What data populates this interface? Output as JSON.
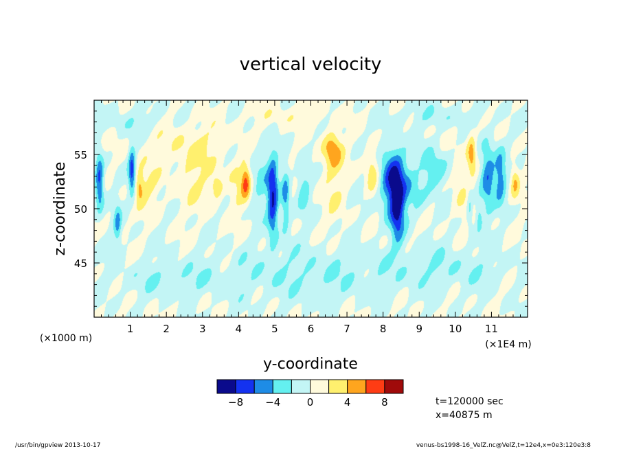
{
  "chart_data": {
    "type": "heatmap",
    "title": "vertical velocity",
    "xlabel": "y-coordinate",
    "ylabel": "z-coordinate",
    "x_unit_left": "(×1000 m)",
    "x_unit_right": "(×1E4 m)",
    "xlim": [
      0,
      12
    ],
    "ylim": [
      40,
      60
    ],
    "x_ticks": [
      "1",
      "2",
      "3",
      "4",
      "5",
      "6",
      "7",
      "8",
      "9",
      "10",
      "11"
    ],
    "y_ticks": [
      "45",
      "50",
      "55"
    ],
    "colorbar": {
      "levels": [
        -10,
        -8,
        -6,
        -4,
        -2,
        0,
        2,
        4,
        6,
        8,
        10
      ],
      "tick_labels": [
        "−8",
        "−4",
        "0",
        "4",
        "8"
      ],
      "colors": [
        "#0a0a8c",
        "#1432f0",
        "#1e8ce6",
        "#64f0f0",
        "#c3f5f5",
        "#fffadc",
        "#fff06e",
        "#ffa51e",
        "#ff3c14",
        "#a00a0a"
      ]
    },
    "annotations": {
      "time": "t=120000 sec",
      "xpos": "x=40875 m"
    },
    "footer_left": "/usr/bin/gpview  2013-10-17",
    "footer_right": "venus-bs1998-16_VelZ.nc@VelZ,t=12e4,x=0e3:120e3:8",
    "features": [
      {
        "x": 0.15,
        "z": 52.5,
        "a": -7,
        "sx": 0.12,
        "sz": 2.5
      },
      {
        "x": 1.05,
        "z": 53.5,
        "a": -7,
        "sx": 0.1,
        "sz": 2.2
      },
      {
        "x": 0.65,
        "z": 48.5,
        "a": -4,
        "sx": 0.1,
        "sz": 2.0
      },
      {
        "x": 1.25,
        "z": 52.0,
        "a": 4,
        "sx": 0.12,
        "sz": 1.3
      },
      {
        "x": 1.5,
        "z": 52.0,
        "a": 2,
        "sx": 0.35,
        "sz": 2.2
      },
      {
        "x": 2.8,
        "z": 53.0,
        "a": 2,
        "sx": 0.6,
        "sz": 3.0
      },
      {
        "x": 3.4,
        "z": 52.0,
        "a": 4,
        "sx": 0.15,
        "sz": 1.0
      },
      {
        "x": 4.0,
        "z": 52.0,
        "a": 2,
        "sx": 0.3,
        "sz": 2.5
      },
      {
        "x": 4.2,
        "z": 52.5,
        "a": 5,
        "sx": 0.12,
        "sz": 1.6
      },
      {
        "x": 4.6,
        "z": 53.0,
        "a": -2.5,
        "sx": 0.25,
        "sz": 3.0
      },
      {
        "x": 4.95,
        "z": 51.0,
        "a": -8,
        "sx": 0.15,
        "sz": 3.8
      },
      {
        "x": 5.3,
        "z": 51.0,
        "a": -5,
        "sx": 0.12,
        "sz": 3.0
      },
      {
        "x": 5.8,
        "z": 52.0,
        "a": -3,
        "sx": 0.18,
        "sz": 2.5
      },
      {
        "x": 6.6,
        "z": 55.5,
        "a": 5,
        "sx": 0.25,
        "sz": 1.5
      },
      {
        "x": 6.6,
        "z": 52.5,
        "a": 2,
        "sx": 0.35,
        "sz": 3.5
      },
      {
        "x": 7.7,
        "z": 53.5,
        "a": 4,
        "sx": 0.18,
        "sz": 2.0
      },
      {
        "x": 8.3,
        "z": 52.5,
        "a": -9,
        "sx": 0.35,
        "sz": 3.0
      },
      {
        "x": 8.4,
        "z": 49.5,
        "a": -6,
        "sx": 0.18,
        "sz": 2.8
      },
      {
        "x": 9.4,
        "z": 53.5,
        "a": -4,
        "sx": 0.35,
        "sz": 2.0
      },
      {
        "x": 8.9,
        "z": 51.0,
        "a": -2,
        "sx": 0.3,
        "sz": 2.0
      },
      {
        "x": 10.45,
        "z": 55.0,
        "a": 5,
        "sx": 0.12,
        "sz": 1.8
      },
      {
        "x": 10.15,
        "z": 52.0,
        "a": 2,
        "sx": 0.25,
        "sz": 3.5
      },
      {
        "x": 10.4,
        "z": 50.0,
        "a": -3,
        "sx": 0.08,
        "sz": 1.8
      },
      {
        "x": 10.65,
        "z": 49.5,
        "a": -3,
        "sx": 0.1,
        "sz": 1.5
      },
      {
        "x": 10.9,
        "z": 53.0,
        "a": -6,
        "sx": 0.2,
        "sz": 3.0
      },
      {
        "x": 11.25,
        "z": 53.0,
        "a": -5,
        "sx": 0.15,
        "sz": 2.5
      },
      {
        "x": 11.65,
        "z": 52.5,
        "a": 4,
        "sx": 0.12,
        "sz": 1.5
      },
      {
        "x": 2.5,
        "z": 56.0,
        "a": 1.5,
        "sx": 1.5,
        "sz": 2.0
      },
      {
        "x": 6.0,
        "z": 44.0,
        "a": -1.8,
        "sx": 3.0,
        "sz": 2.5
      },
      {
        "x": 2.0,
        "z": 43.5,
        "a": -1.5,
        "sx": 1.5,
        "sz": 1.5
      },
      {
        "x": 10.0,
        "z": 44.5,
        "a": -1.5,
        "sx": 1.5,
        "sz": 2.0
      },
      {
        "x": 1.0,
        "z": 58.0,
        "a": -1.5,
        "sx": 1.0,
        "sz": 1.2
      },
      {
        "x": 9.5,
        "z": 58.5,
        "a": -1.5,
        "sx": 1.2,
        "sz": 1.0
      },
      {
        "x": 5.5,
        "z": 58.5,
        "a": 1.5,
        "sx": 1.2,
        "sz": 1.0
      }
    ]
  }
}
